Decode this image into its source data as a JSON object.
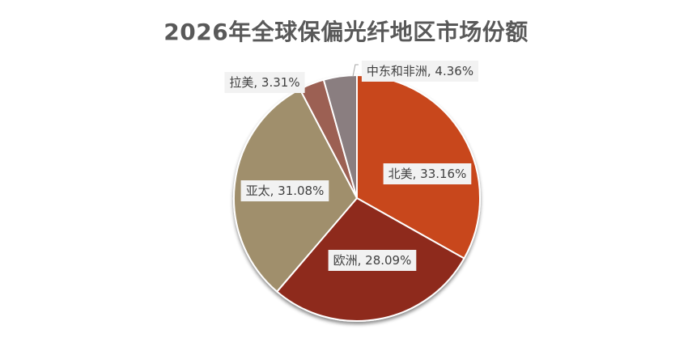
{
  "chart_data": {
    "type": "pie",
    "title": "2026年全球保偏光纤地区市场份额",
    "slices": [
      {
        "label": "北美",
        "value": 33.16,
        "display": "33.16%",
        "color": "#C8461C"
      },
      {
        "label": "欧洲",
        "value": 28.09,
        "display": "28.09%",
        "color": "#8E2C1F"
      },
      {
        "label": "亚太",
        "value": 31.08,
        "display": "31.08%",
        "color": "#A08F6C"
      },
      {
        "label": "拉美",
        "value": 3.31,
        "display": "3.31%",
        "color": "#9C6052"
      },
      {
        "label": "中东和非洲",
        "value": 4.36,
        "display": "4.36%",
        "color": "#8A7E80"
      }
    ],
    "legend": "none"
  }
}
